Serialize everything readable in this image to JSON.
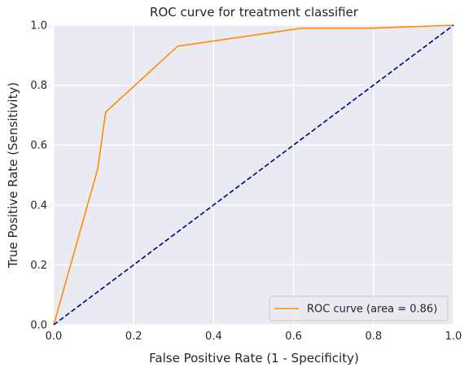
{
  "chart_data": {
    "type": "line",
    "title": "ROC curve for treatment classifier",
    "xlabel": "False Positive Rate (1 - Specificity)",
    "ylabel": "True Positive Rate (Sensitivity)",
    "xlim": [
      0.0,
      1.0
    ],
    "ylim": [
      0.0,
      1.0
    ],
    "xticks": [
      0.0,
      0.2,
      0.4,
      0.6,
      0.8,
      1.0
    ],
    "yticks": [
      0.0,
      0.2,
      0.4,
      0.6,
      0.8,
      1.0
    ],
    "xtick_labels": [
      "0.0",
      "0.2",
      "0.4",
      "0.6",
      "0.8",
      "1.0"
    ],
    "ytick_labels": [
      "0.0",
      "0.2",
      "0.4",
      "0.6",
      "0.8",
      "1.0"
    ],
    "grid": true,
    "legend_position": "lower-right",
    "series": [
      {
        "name": "ROC curve (area = 0.86)",
        "color": "#ff8c00",
        "style": "solid",
        "x": [
          0.0,
          0.11,
          0.13,
          0.31,
          0.62,
          0.79,
          1.0
        ],
        "y": [
          0.0,
          0.52,
          0.71,
          0.93,
          0.99,
          0.99,
          1.0
        ]
      },
      {
        "name": "",
        "color": "#000080",
        "style": "dashed",
        "x": [
          0.0,
          1.0
        ],
        "y": [
          0.0,
          1.0
        ]
      }
    ],
    "background_color": "#eaeaf2",
    "grid_color": "#ffffff"
  }
}
